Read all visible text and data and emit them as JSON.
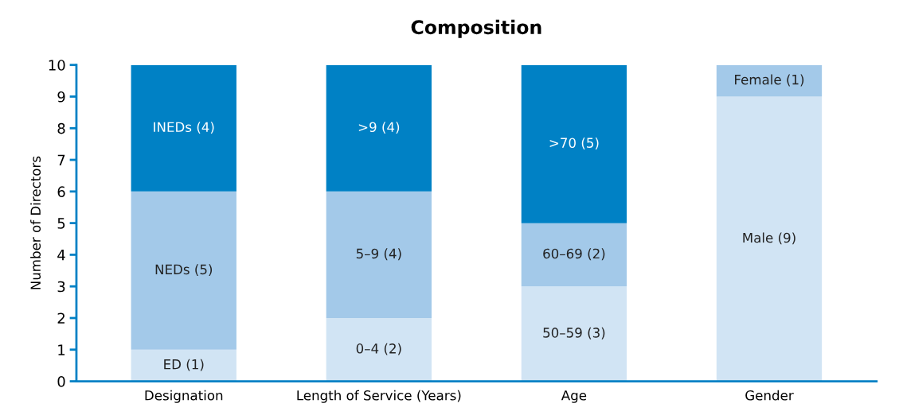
{
  "chart_data": {
    "type": "bar",
    "stacked": true,
    "title": "Composition",
    "ylabel": "Number of Directors",
    "categories": [
      "Designation",
      "Length of Service (Years)",
      "Age",
      "Gender"
    ],
    "series": [
      {
        "color": "#d1e4f4",
        "values": [
          1,
          2,
          3,
          9
        ],
        "value_labels": [
          "ED (1)",
          "0–4 (2)",
          "50–59 (3)",
          "Male (9)"
        ]
      },
      {
        "color": "#a3c9e9",
        "values": [
          5,
          4,
          2,
          1
        ],
        "value_labels": [
          "NEDs (5)",
          "5–9 (4)",
          "60–69 (2)",
          "Female (1)"
        ]
      },
      {
        "color": "#0081c5",
        "values": [
          4,
          4,
          5,
          null
        ],
        "value_labels": [
          "INEDs (4)",
          ">9 (4)",
          ">70 (5)",
          null
        ]
      }
    ],
    "ylim": [
      0,
      10
    ],
    "yticks": [
      0,
      1,
      2,
      3,
      4,
      5,
      6,
      7,
      8,
      9,
      10
    ],
    "grid": false,
    "legend": false
  }
}
